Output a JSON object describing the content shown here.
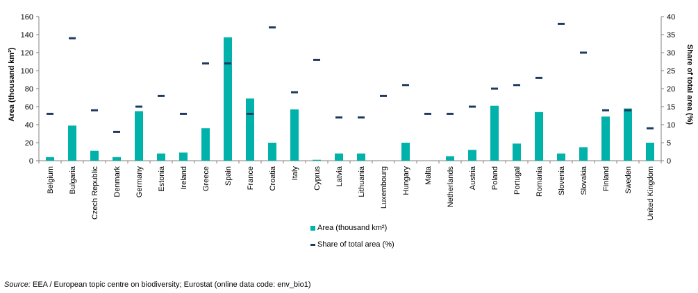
{
  "chart_data": {
    "type": "bar",
    "categories": [
      "Belgium",
      "Bulgaria",
      "Czech Republic",
      "Denmark",
      "Germany",
      "Estonia",
      "Ireland",
      "Greece",
      "Spain",
      "France",
      "Croatia",
      "Italy",
      "Cyprus",
      "Latvia",
      "Lithuania",
      "Luxembourg",
      "Hungary",
      "Malta",
      "Netherlands",
      "Austria",
      "Poland",
      "Portugal",
      "Romania",
      "Slovenia",
      "Slovakia",
      "Finland",
      "Sweden",
      "United Kingdom"
    ],
    "series": [
      {
        "name": "Area (thousand km²)",
        "type": "bar",
        "axis": "left",
        "values": [
          4,
          39,
          11,
          4,
          55,
          8,
          9,
          36,
          137,
          69,
          20,
          57,
          1,
          8,
          8,
          0,
          20,
          0,
          5,
          12,
          61,
          19,
          54,
          8,
          15,
          49,
          58,
          20
        ]
      },
      {
        "name": "Share of total area (%)",
        "type": "marker",
        "axis": "right",
        "values": [
          13,
          34,
          14,
          8,
          15,
          18,
          13,
          27,
          27,
          13,
          37,
          19,
          28,
          12,
          12,
          18,
          21,
          13,
          13,
          15,
          20,
          21,
          23,
          38,
          30,
          14,
          14,
          9
        ]
      }
    ],
    "ylabel": "Area (thousand km²)",
    "ylabel_right": "Share of total area (%)",
    "ylim": [
      0,
      160
    ],
    "ylim_right": [
      0,
      40
    ],
    "yticks": [
      0,
      20,
      40,
      60,
      80,
      100,
      120,
      140,
      160
    ],
    "yticks_right": [
      0,
      5,
      10,
      15,
      20,
      25,
      30,
      35,
      40
    ],
    "grid": false,
    "legend_position": "bottom",
    "colors": {
      "bar": "#00B2A9",
      "marker": "#1F3A5F",
      "axis": "#808080"
    }
  },
  "legend": {
    "area_label": "Area (thousand km²)",
    "share_label": "Share of total area (%)"
  },
  "source": {
    "label": "Source:",
    "text": " EEA / European topic centre on biodiversity; Eurostat (online data code: env_bio1)"
  }
}
